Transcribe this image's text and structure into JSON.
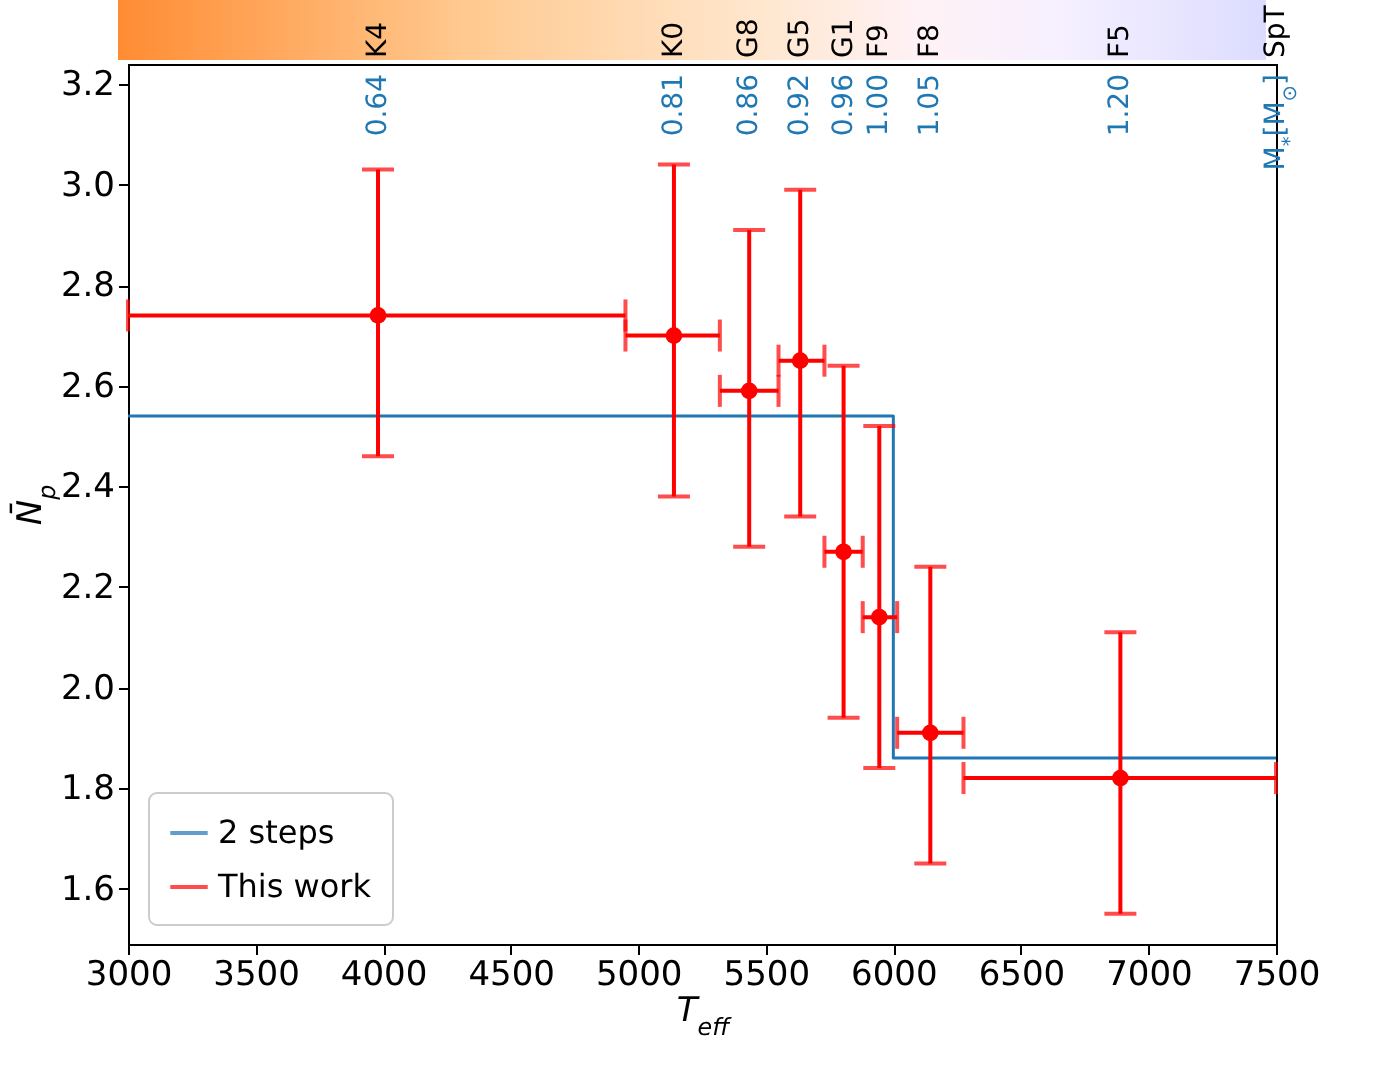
{
  "chart_data": {
    "type": "scatter",
    "xlabel": "T$_{eff}$",
    "ylabel": "N̄$_{p}$",
    "xlim": [
      3000,
      7500
    ],
    "xticks": [
      3000,
      3500,
      4000,
      4500,
      5000,
      5500,
      6000,
      6500,
      7000,
      7500
    ],
    "ylim": [
      1.49,
      3.24
    ],
    "yticks": [
      1.6,
      1.8,
      {
        "value": 2,
        "label": "2.0"
      },
      2.2,
      2.4,
      2.6,
      2.8,
      {
        "value": 3,
        "label": "3.0"
      },
      3.2
    ],
    "annotations": [
      "K4",
      "K0",
      "G8",
      "G5",
      "G1",
      "F9",
      "F8",
      "F5",
      "SpT",
      "0.64",
      "0.81",
      "0.86",
      "0.92",
      "0.96",
      "1.00",
      "1.05",
      "1.20",
      "M$_{*}$[M$_{⊙}$]"
    ],
    "legend": "bottom left",
    "grid": false,
    "series": [
      {
        "name": "2 steps",
        "type": "step",
        "color": "#1f77b4",
        "x": [
          3000,
          6000,
          7500
        ],
        "values": [
          2.54,
          1.86,
          1.86
        ]
      },
      {
        "name": "This work",
        "type": "scatter",
        "marker": "circle",
        "color": "#ff0000",
        "x": [
          3980,
          5140,
          5435,
          5635,
          5805,
          5945,
          6145,
          6890
        ],
        "values": [
          2.74,
          2.7,
          2.59,
          2.65,
          2.27,
          2.14,
          1.91,
          1.82
        ],
        "errors": [
          [
            2.46,
            3.03
          ],
          [
            2.38,
            3.04
          ],
          [
            2.28,
            2.91
          ],
          [
            2.34,
            2.99
          ],
          [
            1.94,
            2.64
          ],
          [
            1.84,
            2.52
          ],
          [
            1.65,
            2.24
          ],
          [
            1.55,
            2.11
          ]
        ],
        "xerrors": [
          [
            3000,
            4950
          ],
          [
            4950,
            5320
          ],
          [
            5320,
            5550
          ],
          [
            5550,
            5730
          ],
          [
            5730,
            5880
          ],
          [
            5880,
            6015
          ],
          [
            6015,
            6275
          ],
          [
            6275,
            7500
          ]
        ]
      }
    ]
  }
}
